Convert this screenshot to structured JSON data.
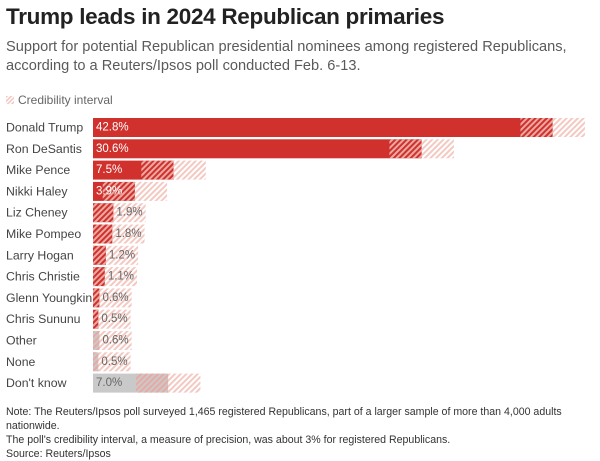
{
  "header": {
    "title": "Trump leads in 2024 Republican primaries",
    "subtitle": "Support for potential Republican presidential nominees among registered Republicans, according to a Reuters/Ipsos poll conducted Feb. 6-13."
  },
  "legend": {
    "label": "Credibility interval"
  },
  "colors": {
    "candidate_bar": "#d0312d",
    "other_bar": "#c9c9c9",
    "hatch_on_bar": "#e9a9a2",
    "hatch_off_bar": "#f3c9c2",
    "label_on_bar": "#ffffff",
    "label_off_bar": "#666666"
  },
  "chart_data": {
    "type": "bar",
    "orientation": "horizontal",
    "categories": [
      "Donald Trump",
      "Ron DeSantis",
      "Mike Pence",
      "Nikki Haley",
      "Liz Cheney",
      "Mike Pompeo",
      "Larry Hogan",
      "Chris Christie",
      "Glenn Youngkin",
      "Chris Sununu",
      "Other",
      "None",
      "Don't know"
    ],
    "values": [
      42.8,
      30.6,
      7.5,
      3.9,
      1.9,
      1.8,
      1.2,
      1.1,
      0.6,
      0.5,
      0.6,
      0.5,
      7.0
    ],
    "value_labels": [
      "42.8%",
      "30.6%",
      "7.5%",
      "3.9%",
      "1.9%",
      "1.8%",
      "1.2%",
      "1.1%",
      "0.6%",
      "0.5%",
      "0.6%",
      "0.5%",
      "7.0%"
    ],
    "credibility_interval": 3,
    "bar_kind": [
      "candidate",
      "candidate",
      "candidate",
      "candidate",
      "candidate",
      "candidate",
      "candidate",
      "candidate",
      "candidate",
      "candidate",
      "other",
      "other",
      "other"
    ],
    "xlim": [
      0,
      46
    ],
    "grid": false
  },
  "footer": {
    "note_line1": "Note: The Reuters/Ipsos poll surveyed 1,465 registered Republicans, part of a larger sample of more than 4,000 adults nationwide.",
    "note_line2": "The poll's credibility interval, a measure of precision, was about 3% for registered Republicans.",
    "source": "Source: Reuters/Ipsos"
  }
}
